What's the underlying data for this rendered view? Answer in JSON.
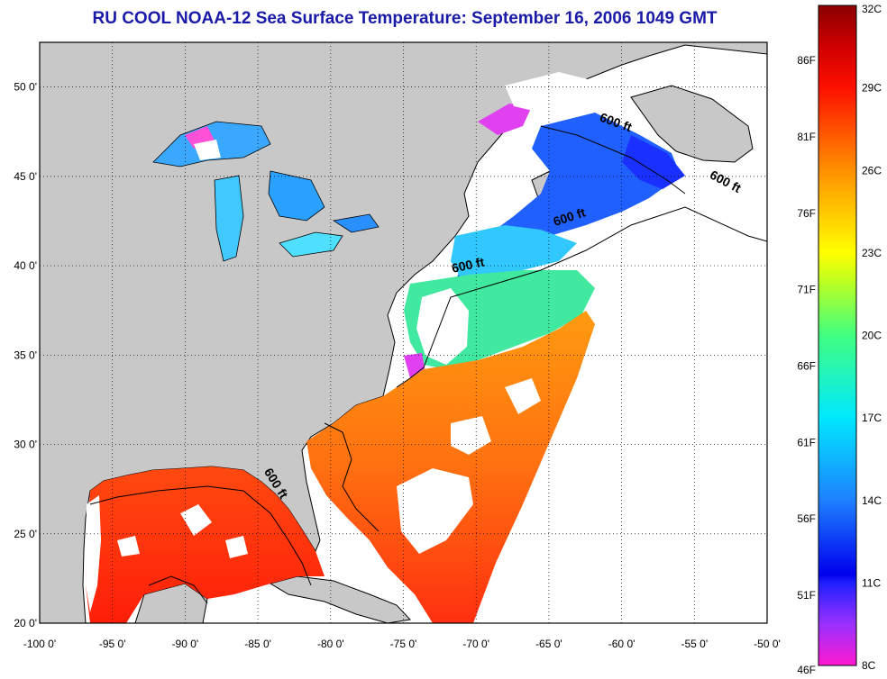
{
  "title": "RU COOL  NOAA-12  Sea Surface Temperature:  September 16, 2006 1049 GMT",
  "map": {
    "lon_range": [
      -100,
      -50
    ],
    "lat_range": [
      20,
      52.5
    ],
    "lon_ticks": [
      {
        "value": -100,
        "label": "-100 0'"
      },
      {
        "value": -95,
        "label": "-95 0'"
      },
      {
        "value": -90,
        "label": "-90 0'"
      },
      {
        "value": -85,
        "label": "-85 0'"
      },
      {
        "value": -80,
        "label": "-80 0'"
      },
      {
        "value": -75,
        "label": "-75 0'"
      },
      {
        "value": -70,
        "label": "-70 0'"
      },
      {
        "value": -65,
        "label": "-65 0'"
      },
      {
        "value": -60,
        "label": "-60 0'"
      },
      {
        "value": -55,
        "label": "-55 0'"
      },
      {
        "value": -50,
        "label": "-50 0'"
      }
    ],
    "lat_ticks": [
      {
        "value": 50,
        "label": "50 0'"
      },
      {
        "value": 45,
        "label": "45 0'"
      },
      {
        "value": 40,
        "label": "40 0'"
      },
      {
        "value": 35,
        "label": "35 0'"
      },
      {
        "value": 30,
        "label": "30 0'"
      },
      {
        "value": 25,
        "label": "25 0'"
      },
      {
        "value": 20,
        "label": "20 0'"
      }
    ],
    "grid": "dotted",
    "colors": {
      "land": "#c8c8c8",
      "no_data": "#ffffff",
      "coastline": "#000000"
    },
    "contour_labels": [
      {
        "text": "600 ft",
        "lon": -60.5,
        "lat": 47.8,
        "angle": 20
      },
      {
        "text": "600 ft",
        "lon": -53.0,
        "lat": 44.5,
        "angle": 28
      },
      {
        "text": "600 ft",
        "lon": -63.5,
        "lat": 42.5,
        "angle": -18
      },
      {
        "text": "600 ft",
        "lon": -70.5,
        "lat": 39.8,
        "angle": -12
      },
      {
        "text": "600 ft",
        "lon": -84.0,
        "lat": 27.7,
        "angle": 58
      }
    ]
  },
  "colorbar": {
    "range_c": [
      8,
      32
    ],
    "stops": [
      {
        "c": 8,
        "color": "#ff1ad0"
      },
      {
        "c": 9.5,
        "color": "#9a30ff"
      },
      {
        "c": 11,
        "color": "#2020ff"
      },
      {
        "c": 11.3,
        "color": "#0000ee"
      },
      {
        "c": 14,
        "color": "#1e80ff"
      },
      {
        "c": 17,
        "color": "#00e8ff"
      },
      {
        "c": 20,
        "color": "#40ff80"
      },
      {
        "c": 22,
        "color": "#c0ff20"
      },
      {
        "c": 23,
        "color": "#ffff00"
      },
      {
        "c": 26,
        "color": "#ff9000"
      },
      {
        "c": 29,
        "color": "#ff1000"
      },
      {
        "c": 30.5,
        "color": "#d00000"
      },
      {
        "c": 32,
        "color": "#8a0000"
      }
    ],
    "celsius_labels": [
      {
        "value": 32,
        "label": "32C"
      },
      {
        "value": 29,
        "label": "29C"
      },
      {
        "value": 26,
        "label": "26C"
      },
      {
        "value": 23,
        "label": "23C"
      },
      {
        "value": 20,
        "label": "20C"
      },
      {
        "value": 17,
        "label": "17C"
      },
      {
        "value": 14,
        "label": "14C"
      },
      {
        "value": 11,
        "label": "11C"
      },
      {
        "value": 8,
        "label": "8C"
      }
    ],
    "fahrenheit_labels": [
      {
        "value": 86,
        "label": "86F"
      },
      {
        "value": 81,
        "label": "81F"
      },
      {
        "value": 76,
        "label": "76F"
      },
      {
        "value": 71,
        "label": "71F"
      },
      {
        "value": 66,
        "label": "66F"
      },
      {
        "value": 61,
        "label": "61F"
      },
      {
        "value": 56,
        "label": "56F"
      },
      {
        "value": 51,
        "label": "51F"
      },
      {
        "value": 46,
        "label": "46F"
      }
    ]
  }
}
